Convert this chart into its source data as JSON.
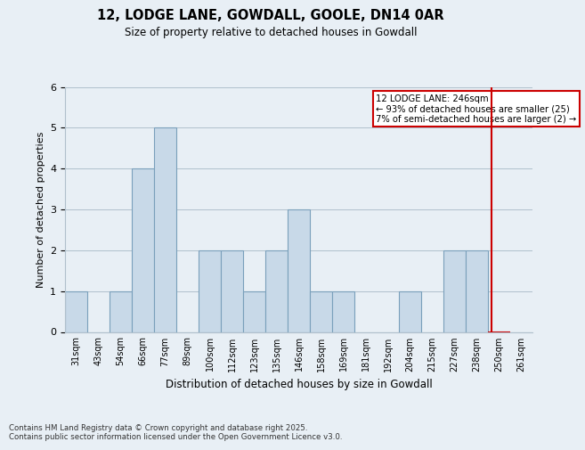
{
  "title": "12, LODGE LANE, GOWDALL, GOOLE, DN14 0AR",
  "subtitle": "Size of property relative to detached houses in Gowdall",
  "xlabel": "Distribution of detached houses by size in Gowdall",
  "ylabel": "Number of detached properties",
  "categories": [
    "31sqm",
    "43sqm",
    "54sqm",
    "66sqm",
    "77sqm",
    "89sqm",
    "100sqm",
    "112sqm",
    "123sqm",
    "135sqm",
    "146sqm",
    "158sqm",
    "169sqm",
    "181sqm",
    "192sqm",
    "204sqm",
    "215sqm",
    "227sqm",
    "238sqm",
    "250sqm",
    "261sqm"
  ],
  "values": [
    1,
    0,
    1,
    4,
    5,
    0,
    2,
    2,
    1,
    2,
    3,
    1,
    1,
    0,
    0,
    1,
    0,
    2,
    2,
    0,
    0
  ],
  "highlight_bar_index": 19,
  "bar_color": "#c8d9e8",
  "bar_edge_color": "#7aa0bb",
  "highlight_bar_edge_color": "#cc0000",
  "vline_color": "#cc0000",
  "annotation_text": "12 LODGE LANE: 246sqm\n← 93% of detached houses are smaller (25)\n7% of semi-detached houses are larger (2) →",
  "annotation_box_color": "#cc0000",
  "ylim": [
    0,
    6
  ],
  "yticks": [
    0,
    1,
    2,
    3,
    4,
    5,
    6
  ],
  "footer_text": "Contains HM Land Registry data © Crown copyright and database right 2025.\nContains public sector information licensed under the Open Government Licence v3.0.",
  "background_color": "#e8eff5"
}
